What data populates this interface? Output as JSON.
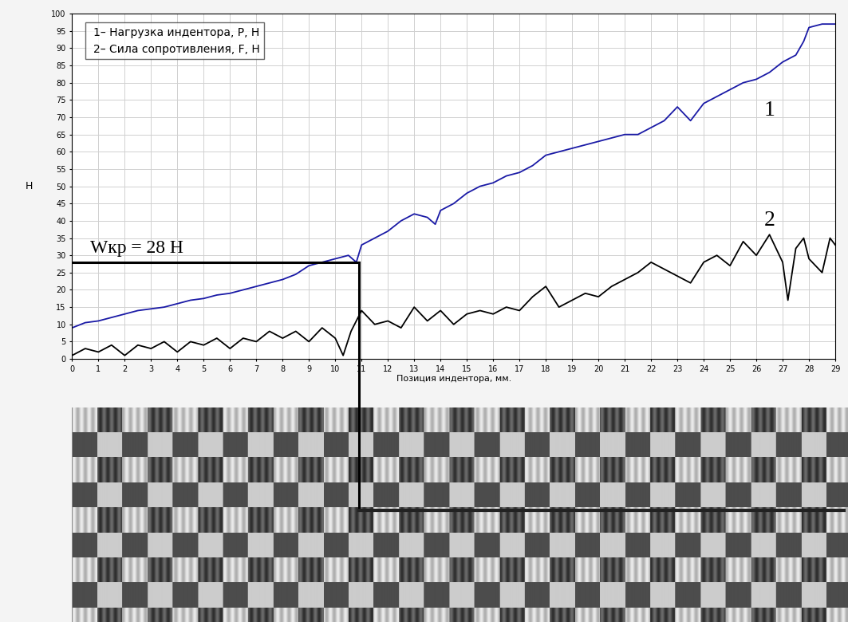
{
  "chart_data": {
    "type": "line",
    "x_label": "Позиция индентора, мм.",
    "y_label": "Н",
    "xlim": [
      0,
      29
    ],
    "xticks": [
      0,
      1,
      2,
      3,
      4,
      5,
      6,
      7,
      8,
      9,
      10,
      11,
      12,
      13,
      14,
      15,
      16,
      17,
      18,
      19,
      20,
      21,
      22,
      23,
      24,
      25,
      26,
      27,
      28,
      29
    ],
    "ylim": [
      0,
      100
    ],
    "yticks": [
      0,
      5,
      10,
      15,
      20,
      25,
      30,
      35,
      40,
      45,
      50,
      55,
      60,
      65,
      70,
      75,
      80,
      85,
      90,
      95,
      100
    ],
    "grid": true,
    "legend": "upper left",
    "series": [
      {
        "name": "1– Нагрузка индентора, P, Н",
        "color": "#1a1aa6",
        "x": [
          0,
          0.5,
          1,
          1.5,
          2,
          2.5,
          3,
          3.5,
          4,
          4.5,
          5,
          5.5,
          6,
          6.5,
          7,
          7.5,
          8,
          8.5,
          9,
          9.5,
          10,
          10.5,
          10.8,
          11,
          11.5,
          12,
          12.5,
          13,
          13.5,
          13.8,
          14,
          14.5,
          15,
          15.5,
          16,
          16.5,
          17,
          17.5,
          18,
          18.5,
          19,
          19.5,
          20,
          20.5,
          21,
          21.5,
          22,
          22.5,
          23,
          23.5,
          24,
          24.5,
          25,
          25.5,
          26,
          26.5,
          27,
          27.5,
          27.8,
          28,
          28.5,
          29
        ],
        "values": [
          9,
          10.5,
          11,
          12,
          13,
          14,
          14.5,
          15,
          16,
          17,
          17.5,
          18.5,
          19,
          20,
          21,
          22,
          23,
          24.5,
          27,
          28,
          29,
          30,
          28,
          33,
          35,
          37,
          40,
          42,
          41,
          39,
          43,
          45,
          48,
          50,
          51,
          53,
          54,
          56,
          59,
          60,
          61,
          62,
          63,
          64,
          65,
          65,
          67,
          69,
          73,
          69,
          74,
          76,
          78,
          80,
          81,
          83,
          86,
          88,
          92,
          96,
          97,
          97
        ]
      },
      {
        "name": "2– Сила сопротивления, F, Н",
        "color": "#000000",
        "x": [
          0,
          0.5,
          1,
          1.5,
          2,
          2.5,
          3,
          3.5,
          4,
          4.5,
          5,
          5.5,
          6,
          6.5,
          7,
          7.5,
          8,
          8.5,
          9,
          9.5,
          10,
          10.3,
          10.6,
          11,
          11.5,
          12,
          12.5,
          13,
          13.5,
          14,
          14.5,
          15,
          15.5,
          16,
          16.5,
          17,
          17.5,
          18,
          18.5,
          19,
          19.5,
          20,
          20.5,
          21,
          21.5,
          22,
          22.5,
          23,
          23.5,
          24,
          24.5,
          25,
          25.5,
          26,
          26.5,
          27,
          27.2,
          27.5,
          27.8,
          28,
          28.5,
          28.8,
          29
        ],
        "values": [
          1,
          3,
          2,
          4,
          1,
          4,
          3,
          5,
          2,
          5,
          4,
          6,
          3,
          6,
          5,
          8,
          6,
          8,
          5,
          9,
          6,
          1,
          8,
          14,
          10,
          11,
          9,
          15,
          11,
          14,
          10,
          13,
          14,
          13,
          15,
          14,
          18,
          21,
          15,
          17,
          19,
          18,
          21,
          23,
          25,
          28,
          26,
          24,
          22,
          28,
          30,
          27,
          34,
          30,
          36,
          28,
          17,
          32,
          35,
          29,
          25,
          35,
          33
        ]
      }
    ],
    "annotations": [
      {
        "text": "Wкр = 28 Н",
        "x": 10.9,
        "y": 28
      },
      {
        "text": "1",
        "x": 26.5,
        "y": 72
      },
      {
        "text": "2",
        "x": 26.5,
        "y": 40
      }
    ]
  }
}
